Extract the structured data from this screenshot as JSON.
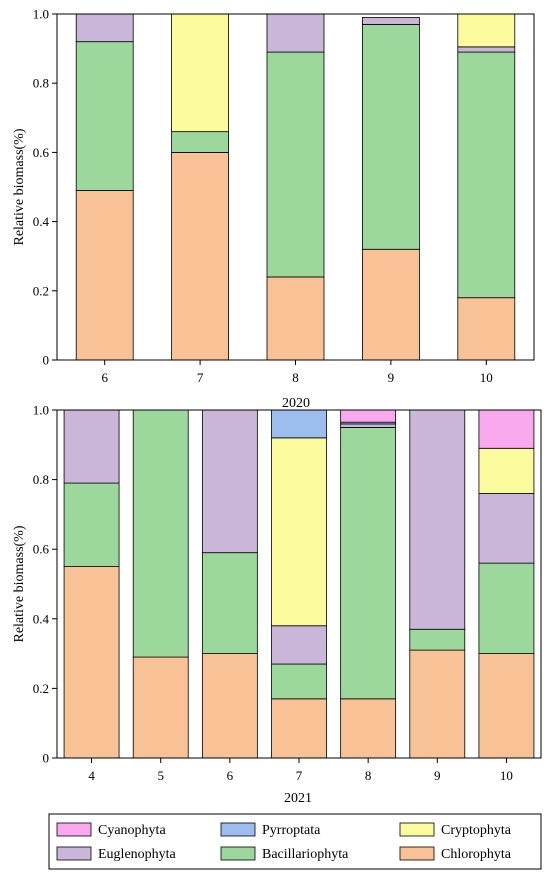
{
  "series_colors": {
    "Chlorophyta": "#F9C196",
    "Bacillariophyta": "#9CD79C",
    "Euglenophyta": "#C9B6D9",
    "Cryptophyta": "#FBFB9E",
    "Pyrroptata": "#9DBDEE",
    "Cyanophyta": "#FAA8EE"
  },
  "chart_data": [
    {
      "type": "bar",
      "stacked": true,
      "xlabel": "2020",
      "ylabel": "Relative biomass(%)",
      "ylim": [
        0,
        1
      ],
      "yticks": [
        "0",
        "0.2",
        "0.4",
        "0.6",
        "0.8",
        "1.0"
      ],
      "categories": [
        "6",
        "7",
        "8",
        "9",
        "10"
      ],
      "series": [
        {
          "name": "Chlorophyta",
          "values": [
            0.49,
            0.6,
            0.24,
            0.32,
            0.18
          ]
        },
        {
          "name": "Bacillariophyta",
          "values": [
            0.43,
            0.06,
            0.65,
            0.65,
            0.71
          ]
        },
        {
          "name": "Euglenophyta",
          "values": [
            0.08,
            0.0,
            0.11,
            0.02,
            0.015
          ]
        },
        {
          "name": "Cryptophyta",
          "values": [
            0.0,
            0.34,
            0.0,
            0.0,
            0.095
          ]
        },
        {
          "name": "Pyrroptata",
          "values": [
            0,
            0,
            0,
            0,
            0
          ]
        },
        {
          "name": "Cyanophyta",
          "values": [
            0,
            0,
            0,
            0,
            0
          ]
        }
      ]
    },
    {
      "type": "bar",
      "stacked": true,
      "xlabel": "2021",
      "ylabel": "Relative biomass(%)",
      "ylim": [
        0,
        1
      ],
      "yticks": [
        "0",
        "0.2",
        "0.4",
        "0.6",
        "0.8",
        "1.0"
      ],
      "categories": [
        "4",
        "5",
        "6",
        "7",
        "8",
        "9",
        "10"
      ],
      "series": [
        {
          "name": "Chlorophyta",
          "values": [
            0.55,
            0.29,
            0.3,
            0.17,
            0.17,
            0.31,
            0.3
          ]
        },
        {
          "name": "Bacillariophyta",
          "values": [
            0.24,
            0.71,
            0.29,
            0.1,
            0.78,
            0.06,
            0.26
          ]
        },
        {
          "name": "Euglenophyta",
          "values": [
            0.21,
            0.0,
            0.41,
            0.11,
            0.01,
            0.63,
            0.2
          ]
        },
        {
          "name": "Cryptophyta",
          "values": [
            0.0,
            0.0,
            0.0,
            0.54,
            0.0,
            0.0,
            0.13
          ]
        },
        {
          "name": "Pyrroptata",
          "values": [
            0.0,
            0.0,
            0.0,
            0.08,
            0.005,
            0.0,
            0.0
          ]
        },
        {
          "name": "Cyanophyta",
          "values": [
            0.0,
            0.0,
            0.0,
            0.0,
            0.035,
            0.0,
            0.11
          ]
        }
      ]
    }
  ],
  "legend": {
    "items": [
      "Cyanophyta",
      "Pyrroptata",
      "Cryptophyta",
      "Euglenophyta",
      "Bacillariophyta",
      "Chlorophyta"
    ]
  }
}
